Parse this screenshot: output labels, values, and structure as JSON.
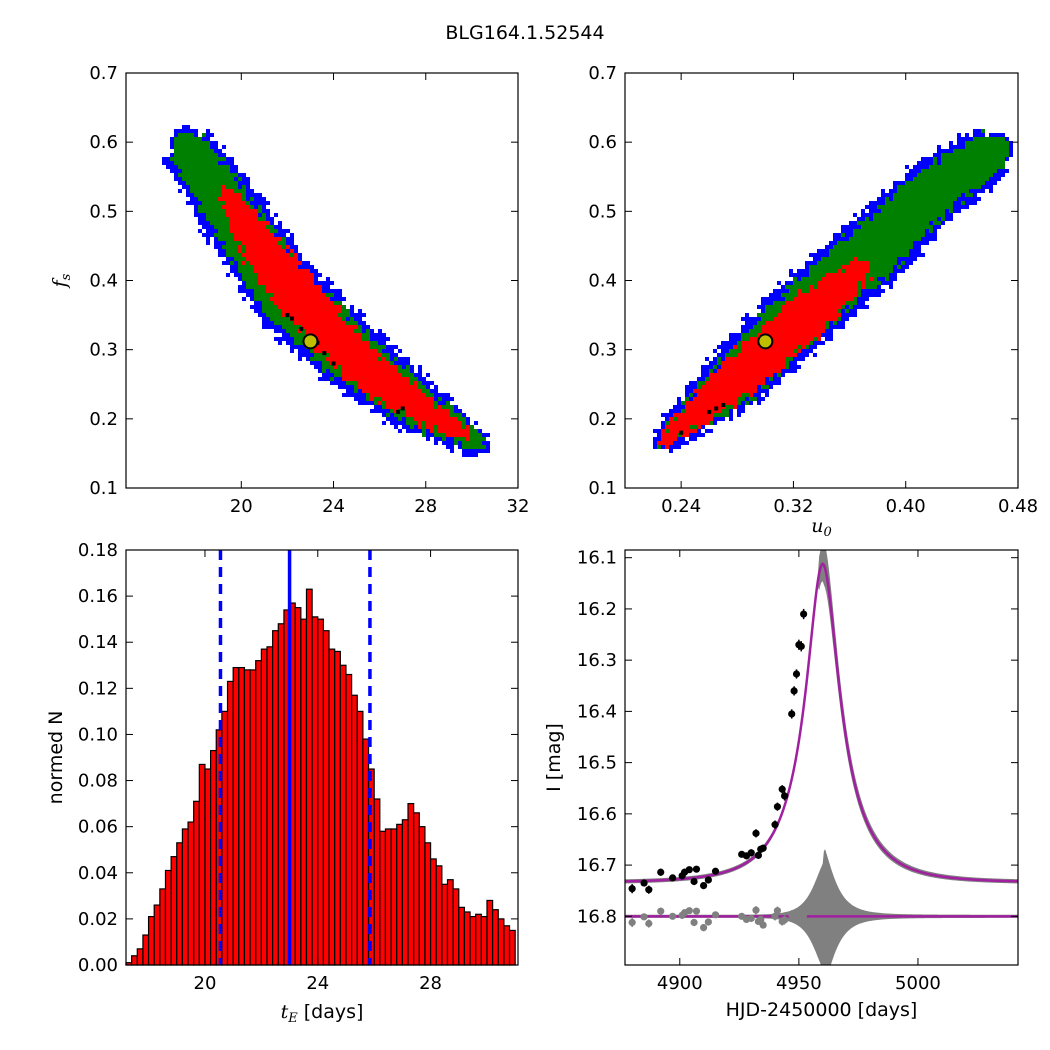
{
  "figure": {
    "title": "BLG164.1.52544"
  },
  "chart_data": [
    {
      "id": "scatter_tE_fs",
      "type": "heatmap",
      "title": "",
      "xlabel": "",
      "ylabel": "f_s",
      "xlim": [
        15,
        32
      ],
      "ylim": [
        0.1,
        0.7
      ],
      "xticks": [
        20,
        24,
        28,
        32
      ],
      "yticks": [
        0.1,
        0.2,
        0.3,
        0.4,
        0.5,
        0.6,
        0.7
      ],
      "colors": {
        "outer": "#0000ff",
        "middle": "#008000",
        "inner": "#ff0000",
        "samples": "#000000",
        "best": "#bfbf00"
      },
      "regions": {
        "outer_centerline": [
          [
            17.6,
            0.6
          ],
          [
            19.5,
            0.5
          ],
          [
            22.0,
            0.38
          ],
          [
            24.5,
            0.3
          ],
          [
            27.5,
            0.22
          ],
          [
            30.5,
            0.16
          ]
        ],
        "outer_halfwidth": [
          0.032,
          0.04,
          0.045,
          0.045,
          0.035,
          0.015
        ],
        "middle_halfwidth": [
          0.027,
          0.035,
          0.04,
          0.04,
          0.03,
          0.01
        ],
        "inner_centerline": [
          [
            19.3,
            0.53
          ],
          [
            21.0,
            0.44
          ],
          [
            23.0,
            0.355
          ],
          [
            25.5,
            0.27
          ],
          [
            28.0,
            0.21
          ],
          [
            29.8,
            0.175
          ]
        ],
        "inner_halfwidth": [
          0.01,
          0.03,
          0.032,
          0.028,
          0.02,
          0.008
        ]
      },
      "best_fit": {
        "x": 23.0,
        "y": 0.312
      },
      "samples": [
        [
          22.0,
          0.35
        ],
        [
          22.2,
          0.345
        ],
        [
          22.6,
          0.33
        ],
        [
          23.3,
          0.31
        ],
        [
          23.6,
          0.295
        ],
        [
          24.0,
          0.28
        ],
        [
          26.8,
          0.21
        ],
        [
          27.0,
          0.215
        ]
      ]
    },
    {
      "id": "scatter_u0_fs",
      "type": "heatmap",
      "title": "",
      "xlabel": "u_0",
      "ylabel": "",
      "xlim": [
        0.2,
        0.48
      ],
      "ylim": [
        0.1,
        0.7
      ],
      "xticks": [
        0.24,
        0.32,
        0.4,
        0.48
      ],
      "xticklabels": [
        "0.24",
        "0.32",
        "0.40",
        "0.48"
      ],
      "yticks": [
        0.1,
        0.2,
        0.3,
        0.4,
        0.5,
        0.6,
        0.7
      ],
      "colors": {
        "outer": "#0000ff",
        "middle": "#008000",
        "inner": "#ff0000",
        "samples": "#000000",
        "best": "#bfbf00"
      },
      "regions": {
        "outer_centerline": [
          [
            0.225,
            0.165
          ],
          [
            0.28,
            0.26
          ],
          [
            0.33,
            0.36
          ],
          [
            0.38,
            0.45
          ],
          [
            0.42,
            0.53
          ],
          [
            0.465,
            0.59
          ]
        ],
        "outer_halfwidth": [
          0.015,
          0.04,
          0.045,
          0.045,
          0.04,
          0.035
        ],
        "middle_halfwidth": [
          0.01,
          0.035,
          0.04,
          0.04,
          0.035,
          0.03
        ],
        "inner_centerline": [
          [
            0.226,
            0.165
          ],
          [
            0.28,
            0.26
          ],
          [
            0.33,
            0.35
          ],
          [
            0.37,
            0.42
          ]
        ],
        "inner_halfwidth": [
          0.008,
          0.03,
          0.032,
          0.015
        ]
      },
      "best_fit": {
        "x": 0.3,
        "y": 0.312
      },
      "samples": [
        [
          0.24,
          0.18
        ],
        [
          0.26,
          0.21
        ],
        [
          0.265,
          0.215
        ],
        [
          0.27,
          0.22
        ]
      ]
    },
    {
      "id": "hist_tE",
      "type": "bar",
      "title": "",
      "xlabel": "t_E [days]",
      "ylabel": "normed N",
      "xlim": [
        17.2,
        31.1
      ],
      "ylim": [
        0,
        0.18
      ],
      "xticks": [
        20,
        24,
        28
      ],
      "yticks": [
        0.0,
        0.02,
        0.04,
        0.06,
        0.08,
        0.1,
        0.12,
        0.14,
        0.16,
        0.18
      ],
      "yticklabels": [
        "0.00",
        "0.02",
        "0.04",
        "0.06",
        "0.08",
        "0.10",
        "0.12",
        "0.14",
        "0.16",
        "0.18"
      ],
      "bar_start": 17.2,
      "bar_width": 0.2,
      "values": [
        0.001,
        0.004,
        0.007,
        0.013,
        0.021,
        0.026,
        0.033,
        0.041,
        0.047,
        0.053,
        0.059,
        0.062,
        0.071,
        0.087,
        0.085,
        0.093,
        0.102,
        0.11,
        0.123,
        0.129,
        0.129,
        0.128,
        0.128,
        0.132,
        0.137,
        0.138,
        0.145,
        0.148,
        0.154,
        0.157,
        0.155,
        0.15,
        0.163,
        0.151,
        0.15,
        0.145,
        0.137,
        0.136,
        0.13,
        0.126,
        0.117,
        0.11,
        0.098,
        0.085,
        0.072,
        0.058,
        0.059,
        0.059,
        0.061,
        0.063,
        0.07,
        0.066,
        0.06,
        0.053,
        0.046,
        0.043,
        0.035,
        0.037,
        0.033,
        0.025,
        0.023,
        0.021,
        0.022,
        0.021,
        0.028,
        0.024,
        0.02,
        0.017,
        0.015,
        0.013,
        0.01,
        0.007,
        0.004,
        0.002,
        0.001,
        0.001,
        0.001
      ],
      "colors": {
        "bar": "#ff0000",
        "edge": "#000000",
        "line": "#0000ff"
      },
      "vlines": [
        {
          "x": 23.0,
          "style": "solid"
        },
        {
          "x": 20.55,
          "style": "dashed"
        },
        {
          "x": 25.85,
          "style": "dashed"
        }
      ]
    },
    {
      "id": "lightcurve",
      "type": "scatter",
      "title": "",
      "xlabel": "HJD-2450000 [days]",
      "ylabel": "I [mag]",
      "xlim": [
        4877,
        5042
      ],
      "ylim": [
        16.895,
        16.085
      ],
      "xticks": [
        4900,
        4950,
        5000
      ],
      "yticks": [
        16.1,
        16.2,
        16.3,
        16.4,
        16.5,
        16.6,
        16.7,
        16.8
      ],
      "model": {
        "t0": 4960.0,
        "tE": 23.0,
        "u0": 0.3,
        "base": 16.734,
        "peak": 16.112,
        "color": "#a020a0"
      },
      "residual_baseline": 16.8,
      "colors": {
        "data": "#000000",
        "resid": "#808080",
        "band": "#808080"
      },
      "data": [
        [
          4880,
          16.746,
          0.009
        ],
        [
          4885,
          16.735,
          0.006
        ],
        [
          4887,
          16.748,
          0.008
        ],
        [
          4892,
          16.714,
          0.007
        ],
        [
          4897,
          16.725,
          0.006
        ],
        [
          4901,
          16.721,
          0.007
        ],
        [
          4902,
          16.714,
          0.007
        ],
        [
          4904,
          16.709,
          0.006
        ],
        [
          4906,
          16.732,
          0.007
        ],
        [
          4907,
          16.708,
          0.006
        ],
        [
          4910,
          16.74,
          0.007
        ],
        [
          4912,
          16.729,
          0.007
        ],
        [
          4915,
          16.712,
          0.006
        ],
        [
          4926,
          16.679,
          0.006
        ],
        [
          4928,
          16.682,
          0.006
        ],
        [
          4930,
          16.676,
          0.007
        ],
        [
          4932,
          16.638,
          0.008
        ],
        [
          4933,
          16.681,
          0.006
        ],
        [
          4934,
          16.669,
          0.007
        ],
        [
          4935,
          16.667,
          0.007
        ],
        [
          4940,
          16.621,
          0.008
        ],
        [
          4941,
          16.586,
          0.008
        ],
        [
          4943,
          16.552,
          0.008
        ],
        [
          4944,
          16.565,
          0.009
        ],
        [
          4947,
          16.405,
          0.009
        ],
        [
          4948,
          16.36,
          0.009
        ],
        [
          4949,
          16.327,
          0.009
        ],
        [
          4950,
          16.27,
          0.01
        ],
        [
          4951,
          16.273,
          0.01
        ],
        [
          4952,
          16.21,
          0.01
        ]
      ],
      "residuals": [
        [
          4880,
          16.812,
          0.009
        ],
        [
          4885,
          16.801,
          0.006
        ],
        [
          4887,
          16.814,
          0.008
        ],
        [
          4892,
          16.79,
          0.007
        ],
        [
          4897,
          16.8,
          0.006
        ],
        [
          4901,
          16.798,
          0.007
        ],
        [
          4902,
          16.793,
          0.007
        ],
        [
          4904,
          16.789,
          0.006
        ],
        [
          4906,
          16.812,
          0.007
        ],
        [
          4907,
          16.79,
          0.006
        ],
        [
          4910,
          16.822,
          0.007
        ],
        [
          4912,
          16.811,
          0.007
        ],
        [
          4915,
          16.797,
          0.006
        ],
        [
          4926,
          16.8,
          0.006
        ],
        [
          4928,
          16.806,
          0.006
        ],
        [
          4930,
          16.804,
          0.007
        ],
        [
          4932,
          16.788,
          0.008
        ],
        [
          4933,
          16.81,
          0.006
        ],
        [
          4934,
          16.806,
          0.007
        ],
        [
          4935,
          16.817,
          0.007
        ],
        [
          4940,
          16.8,
          0.008
        ],
        [
          4941,
          16.789,
          0.008
        ],
        [
          4943,
          16.81,
          0.008
        ],
        [
          4944,
          16.807,
          0.009
        ],
        [
          4947,
          16.797,
          0.009
        ],
        [
          4948,
          16.8,
          0.009
        ],
        [
          4949,
          16.801,
          0.009
        ],
        [
          4950,
          16.793,
          0.01
        ],
        [
          4951,
          16.8,
          0.01
        ],
        [
          4952,
          16.798,
          0.01
        ]
      ]
    }
  ]
}
